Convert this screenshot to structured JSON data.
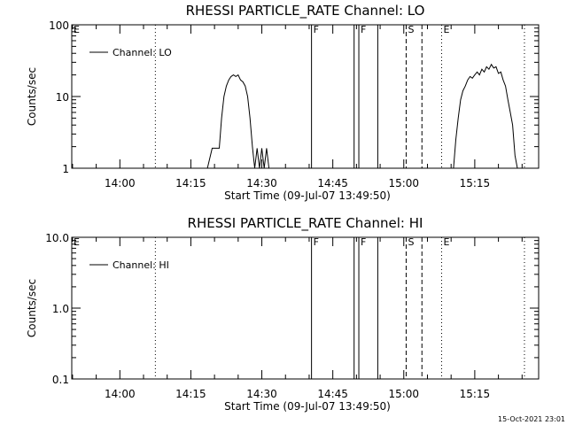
{
  "timestamp": "15-Oct-2021 23:01",
  "chart_data": [
    {
      "type": "line",
      "title": "RHESSI PARTICLE_RATE Channel: LO",
      "xlabel": "Start Time (09-Jul-07 13:49:50)",
      "ylabel": "Counts/sec",
      "y_scale": "log",
      "xlim": [
        "13:49:50",
        "15:28:30"
      ],
      "ylim": [
        1,
        100
      ],
      "x_ticks": [
        "14:00",
        "14:15",
        "14:30",
        "14:45",
        "15:00",
        "15:15"
      ],
      "y_ticks": [
        "1",
        "10",
        "100"
      ],
      "legend": {
        "position": "top-left",
        "entries": [
          "Channel: LO"
        ]
      },
      "grid": false,
      "markers": [
        {
          "label": "E",
          "time": "13:49:50",
          "style": "none"
        },
        {
          "label": "",
          "time": "14:07:30",
          "style": "dotted"
        },
        {
          "label": "F",
          "time": "14:40:30",
          "style": "solid"
        },
        {
          "label": "",
          "time": "14:49:30",
          "style": "solid"
        },
        {
          "label": "F",
          "time": "14:50:30",
          "style": "solid"
        },
        {
          "label": "",
          "time": "14:54:30",
          "style": "solid"
        },
        {
          "label": "S",
          "time": "15:00:30",
          "style": "dashed"
        },
        {
          "label": "",
          "time": "15:03:50",
          "style": "dashed"
        },
        {
          "label": "E",
          "time": "15:08:00",
          "style": "dotted"
        },
        {
          "label": "",
          "time": "15:25:30",
          "style": "dotted"
        }
      ],
      "series": [
        {
          "name": "Channel: LO",
          "points": [
            [
              "14:18:30",
              1
            ],
            [
              "14:19:30",
              1.9
            ],
            [
              "14:21:00",
              1.9
            ],
            [
              "14:21:30",
              5
            ],
            [
              "14:22:00",
              10
            ],
            [
              "14:22:30",
              14
            ],
            [
              "14:23:00",
              17
            ],
            [
              "14:23:30",
              19
            ],
            [
              "14:24:00",
              20
            ],
            [
              "14:24:30",
              19
            ],
            [
              "14:25:00",
              20
            ],
            [
              "14:25:30",
              17
            ],
            [
              "14:26:00",
              16
            ],
            [
              "14:26:30",
              14
            ],
            [
              "14:27:00",
              10
            ],
            [
              "14:27:30",
              5
            ],
            [
              "14:28:00",
              2
            ],
            [
              "14:28:30",
              1
            ],
            [
              "14:29:00",
              1.9
            ],
            [
              "14:29:30",
              1
            ],
            [
              "14:30:00",
              1.9
            ],
            [
              "14:30:30",
              1
            ],
            [
              "14:31:00",
              1.9
            ],
            [
              "14:31:30",
              1
            ],
            null,
            [
              "15:10:30",
              1
            ],
            [
              "15:11:00",
              2.5
            ],
            [
              "15:11:30",
              5
            ],
            [
              "15:12:00",
              9
            ],
            [
              "15:12:30",
              12
            ],
            [
              "15:13:00",
              14
            ],
            [
              "15:13:30",
              17
            ],
            [
              "15:14:00",
              19
            ],
            [
              "15:14:30",
              18
            ],
            [
              "15:15:00",
              20
            ],
            [
              "15:15:30",
              22
            ],
            [
              "15:16:00",
              20
            ],
            [
              "15:16:30",
              24
            ],
            [
              "15:17:00",
              22
            ],
            [
              "15:17:30",
              26
            ],
            [
              "15:18:00",
              24
            ],
            [
              "15:18:30",
              28
            ],
            [
              "15:19:00",
              25
            ],
            [
              "15:19:30",
              26
            ],
            [
              "15:20:00",
              21
            ],
            [
              "15:20:30",
              22
            ],
            [
              "15:21:00",
              17
            ],
            [
              "15:21:30",
              14
            ],
            [
              "15:22:00",
              9
            ],
            [
              "15:22:30",
              6
            ],
            [
              "15:23:00",
              4
            ],
            [
              "15:23:30",
              1.5
            ],
            [
              "15:24:00",
              1
            ]
          ]
        }
      ]
    },
    {
      "type": "line",
      "title": "RHESSI PARTICLE_RATE Channel: HI",
      "xlabel": "Start Time (09-Jul-07 13:49:50)",
      "ylabel": "Counts/sec",
      "y_scale": "log",
      "xlim": [
        "13:49:50",
        "15:28:30"
      ],
      "ylim": [
        0.1,
        10
      ],
      "x_ticks": [
        "14:00",
        "14:15",
        "14:30",
        "14:45",
        "15:00",
        "15:15"
      ],
      "y_ticks": [
        "0.1",
        "1.0",
        "10.0"
      ],
      "legend": {
        "position": "top-left",
        "entries": [
          "Channel: HI"
        ]
      },
      "grid": false,
      "markers": [
        {
          "label": "E",
          "time": "13:49:50",
          "style": "none"
        },
        {
          "label": "",
          "time": "14:07:30",
          "style": "dotted"
        },
        {
          "label": "F",
          "time": "14:40:30",
          "style": "solid"
        },
        {
          "label": "",
          "time": "14:49:30",
          "style": "solid"
        },
        {
          "label": "F",
          "time": "14:50:30",
          "style": "solid"
        },
        {
          "label": "",
          "time": "14:54:30",
          "style": "solid"
        },
        {
          "label": "S",
          "time": "15:00:30",
          "style": "dashed"
        },
        {
          "label": "",
          "time": "15:03:50",
          "style": "dashed"
        },
        {
          "label": "E",
          "time": "15:08:00",
          "style": "dotted"
        },
        {
          "label": "",
          "time": "15:25:30",
          "style": "dotted"
        }
      ],
      "series": [
        {
          "name": "Channel: HI",
          "points": []
        }
      ]
    }
  ]
}
